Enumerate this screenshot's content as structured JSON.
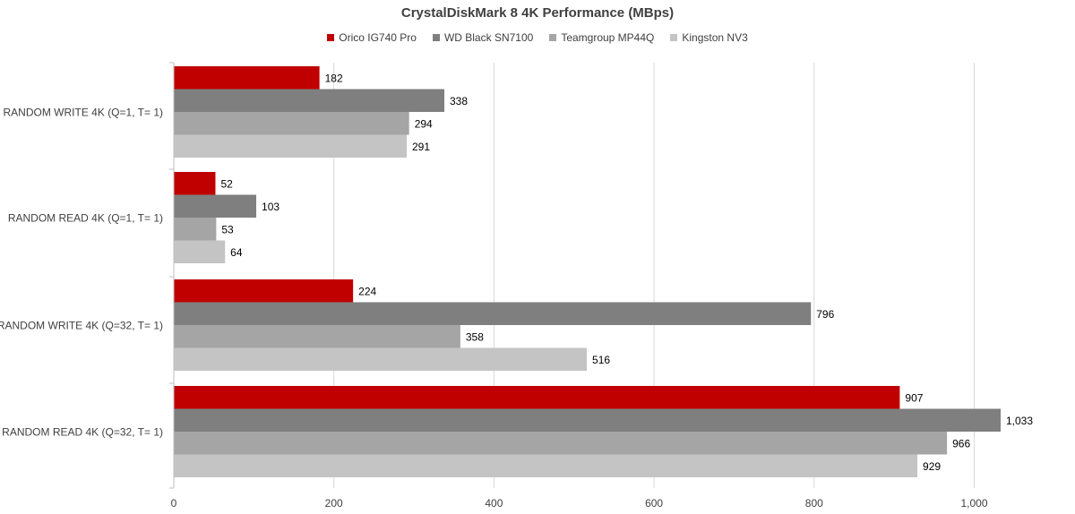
{
  "chart_data": {
    "type": "bar",
    "orientation": "horizontal",
    "title": "CrystalDiskMark 8 4K Performance (MBps)",
    "categories": [
      "RANDOM WRITE 4K (Q=1, T= 1)",
      "RANDOM READ 4K (Q=1, T= 1)",
      "RANDOM WRITE 4K (Q=32, T= 1)",
      "RANDOM READ 4K (Q=32, T= 1)"
    ],
    "series": [
      {
        "name": "Orico IG740 Pro",
        "color": "#c00000",
        "values": [
          182,
          52,
          224,
          907
        ],
        "labels": [
          "182",
          "52",
          "224",
          "907"
        ]
      },
      {
        "name": "WD Black SN7100",
        "color": "#7f7f7f",
        "values": [
          338,
          103,
          796,
          1033
        ],
        "labels": [
          "338",
          "103",
          "796",
          "1,033"
        ]
      },
      {
        "name": "Teamgroup MP44Q",
        "color": "#a5a5a5",
        "values": [
          294,
          53,
          358,
          966
        ],
        "labels": [
          "294",
          "53",
          "358",
          "966"
        ]
      },
      {
        "name": "Kingston NV3",
        "color": "#c4c4c4",
        "values": [
          291,
          64,
          516,
          929
        ],
        "labels": [
          "291",
          "64",
          "516",
          "929"
        ]
      }
    ],
    "xticks": [
      0,
      200,
      400,
      600,
      800,
      1000
    ],
    "xtick_labels": [
      "0",
      "200",
      "400",
      "600",
      "800",
      "1,000"
    ],
    "xlim": [
      0,
      1100
    ],
    "xlabel": "",
    "ylabel": "",
    "grid": true,
    "legend": "top-center"
  }
}
